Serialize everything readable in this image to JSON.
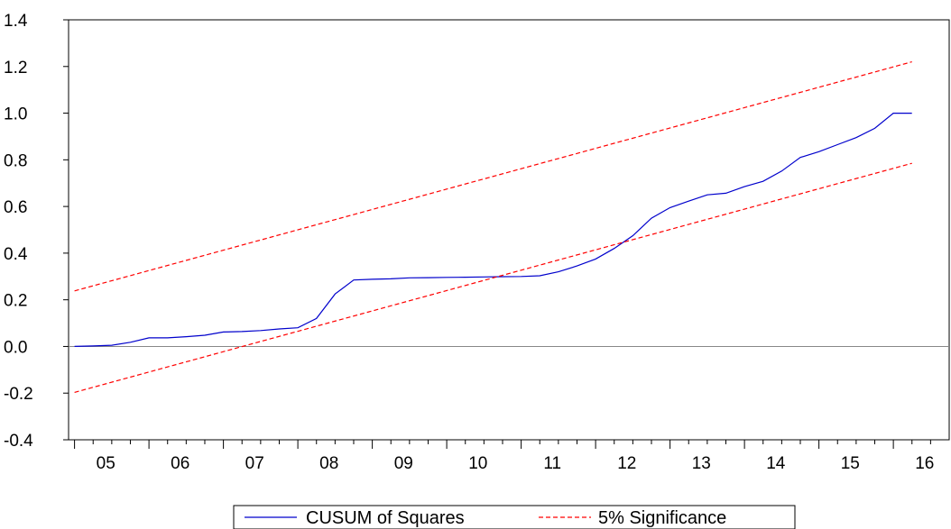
{
  "chart_data": {
    "type": "line",
    "title": "",
    "xlabel": "",
    "ylabel": "",
    "ylim": [
      -0.4,
      1.4
    ],
    "y_ticks": [
      "-0.4",
      "-0.2",
      "0.0",
      "0.2",
      "0.4",
      "0.6",
      "0.8",
      "1.0",
      "1.2",
      "1.4"
    ],
    "x_range": [
      2005.0,
      2016.83
    ],
    "x_tick_labels": [
      "05",
      "06",
      "07",
      "08",
      "09",
      "10",
      "11",
      "12",
      "13",
      "14",
      "15",
      "16"
    ],
    "zero_line": true,
    "grid": false,
    "legend_position": "bottom-center",
    "series": [
      {
        "name": "CUSUM of Squares",
        "color": "#0000cc",
        "style": "solid",
        "x": [
          2005.08,
          2005.33,
          2005.58,
          2005.83,
          2006.08,
          2006.33,
          2006.58,
          2006.83,
          2007.08,
          2007.33,
          2007.58,
          2007.83,
          2008.08,
          2008.33,
          2008.58,
          2008.83,
          2009.08,
          2009.33,
          2009.58,
          2009.83,
          2010.08,
          2010.33,
          2010.58,
          2010.83,
          2011.08,
          2011.33,
          2011.58,
          2011.83,
          2012.08,
          2012.33,
          2012.58,
          2012.83,
          2013.08,
          2013.33,
          2013.58,
          2013.83,
          2014.08,
          2014.33,
          2014.58,
          2014.83,
          2015.08,
          2015.33,
          2015.58,
          2015.83,
          2016.08,
          2016.33
        ],
        "values": [
          0.0,
          0.002,
          0.005,
          0.018,
          0.037,
          0.037,
          0.042,
          0.048,
          0.062,
          0.064,
          0.068,
          0.075,
          0.08,
          0.12,
          0.225,
          0.285,
          0.288,
          0.29,
          0.294,
          0.295,
          0.296,
          0.297,
          0.298,
          0.299,
          0.3,
          0.303,
          0.32,
          0.345,
          0.375,
          0.42,
          0.475,
          0.55,
          0.595,
          0.623,
          0.65,
          0.657,
          0.685,
          0.708,
          0.752,
          0.81,
          0.835,
          0.865,
          0.895,
          0.935,
          1.0,
          1.0
        ]
      },
      {
        "name": "5% Significance",
        "color": "#ff0000",
        "style": "dashed",
        "x": [
          2005.08,
          2016.33
        ],
        "values": [
          0.238,
          1.22
        ]
      },
      {
        "name": "5% Significance",
        "color": "#ff0000",
        "style": "dashed",
        "x": [
          2005.08,
          2016.33
        ],
        "values": [
          -0.197,
          0.785
        ]
      }
    ],
    "legend": [
      {
        "label": "CUSUM of Squares",
        "color": "#0000cc",
        "style": "solid"
      },
      {
        "label": "5% Significance",
        "color": "#ff0000",
        "style": "dashed"
      }
    ]
  }
}
